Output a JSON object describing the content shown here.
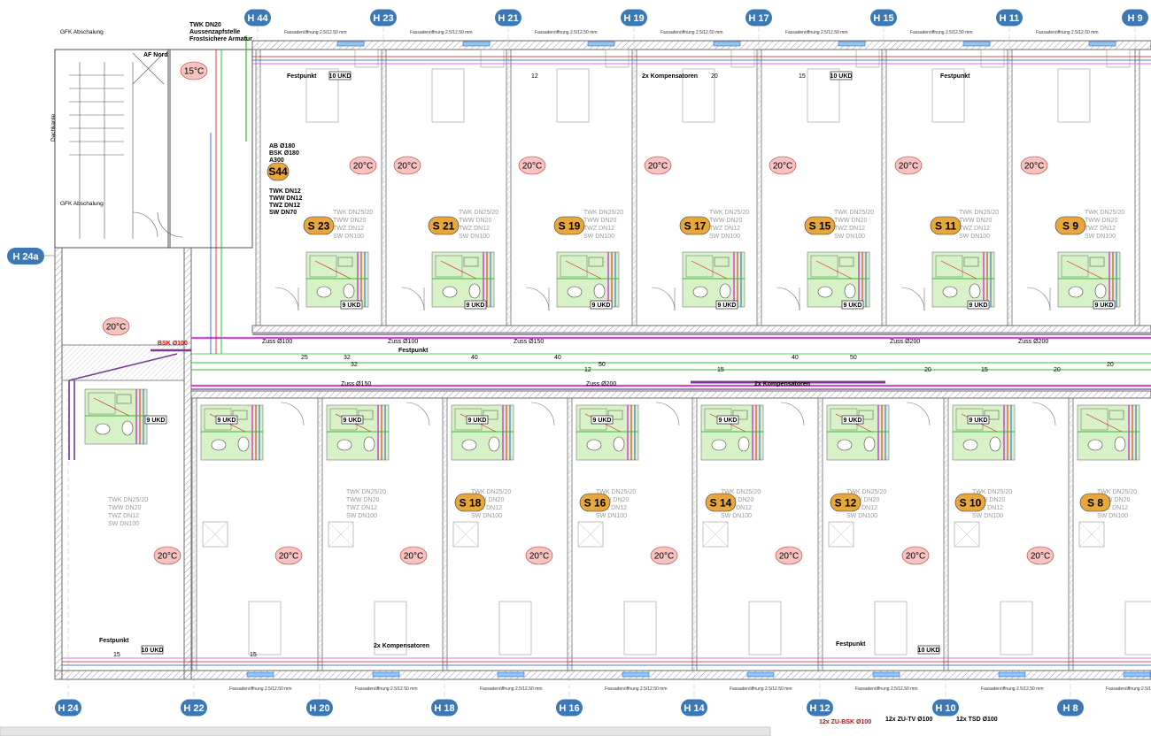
{
  "colors": {
    "axis_bubble": "#3c78b4",
    "suite_tag": "#e8a73a",
    "temp_bubble": "#f6c3c0",
    "wall": "#6e6e6e",
    "pipe_green": "#2fc02f",
    "pipe_red": "#e01010",
    "pipe_blue": "#1f4fd8",
    "pipe_magenta": "#d44ad4",
    "pipe_purple": "#7a3c8c",
    "wet_zone": "#d8f2c8"
  },
  "axes_top": [
    "H 44",
    "H 23",
    "H 21",
    "H 19",
    "H 17",
    "H 15",
    "H 11",
    "H 9"
  ],
  "axes_bottom": [
    "H 24",
    "H 22",
    "H 20",
    "H 18",
    "H 16",
    "H 14",
    "H 12",
    "H 10",
    "H 8"
  ],
  "axis_left": "H 24a",
  "suites_top": [
    "S 23",
    "S 21",
    "S 19",
    "S 17",
    "S 15",
    "S 11",
    "S 9"
  ],
  "suites_bottom": [
    "S 18",
    "S 16",
    "S 14",
    "S 12",
    "S 10",
    "S 8"
  ],
  "suite_special": "S44",
  "temperatures": {
    "t15": "15°C",
    "t20": "20°C"
  },
  "pipe_spec_lines": [
    "TWK DN25/20",
    "TWW DN20",
    "TWZ DN12",
    "SW DN100"
  ],
  "s44_spec_lines": [
    "TWK DN12",
    "TWW DN12",
    "TWZ DN12",
    "SW DN70"
  ],
  "labels": {
    "twk_dn20": "TWK DN20",
    "aussenzapfstelle": "Aussenzapfstelle",
    "frostsichere": "Frostsichere Armatur",
    "gfk_abschalung_1": "GFK Abschalung",
    "gfk_abschalung_2": "GFK Abschalung",
    "af_nord": "AF Nord",
    "ab_180": "AB Ø180",
    "bsk_180": "BSK Ø180",
    "a300": "A300",
    "bsk_100": "BSK Ø100",
    "festpunkt": "Festpunkt",
    "kompensatoren": "2x Kompensatoren",
    "ukd_9": "9 UKD",
    "ukd_10": "10 UKD",
    "zu_bsk": "12x ZU-BSK Ø100",
    "zu_tv": "12x ZU-TV Ø100",
    "tsd": "12x TSD Ø100",
    "dachkante": "Dachkante"
  },
  "duct_labels": [
    "Zuss Ø100",
    "Zuss Ø100",
    "Zuss Ø150",
    "Zuss Ø150",
    "Zuss Ø200",
    "Zuss Ø200",
    "Zuss Ø200"
  ],
  "dimension_numbers": [
    "25",
    "32",
    "32",
    "40",
    "40",
    "50",
    "50",
    "20",
    "15",
    "15",
    "15",
    "12",
    "15",
    "12",
    "20",
    "15",
    "20",
    "20",
    "40"
  ],
  "ventilation_note": "Fassadenöffnung 2.5/12.50 mm"
}
